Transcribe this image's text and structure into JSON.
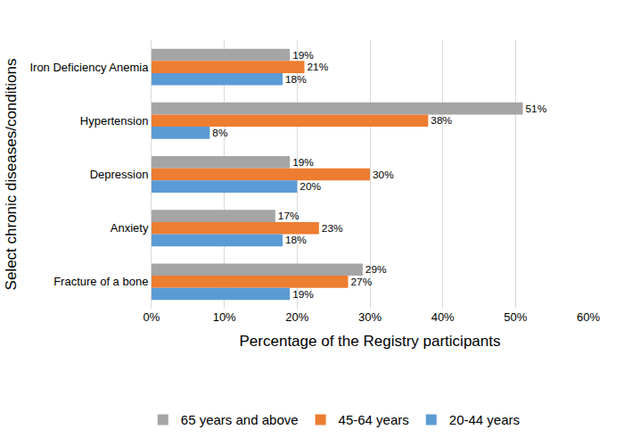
{
  "chart_data": {
    "type": "bar",
    "orientation": "horizontal",
    "x_label": "Percentage of the Registry participants",
    "y_label": "Select chronic diseases/conditions",
    "categories": [
      "Iron Deficiency Anemia",
      "Hypertension",
      "Depression",
      "Anxiety",
      "Fracture of a bone"
    ],
    "series": [
      {
        "name": "65 years and above",
        "color": "#a5a5a5",
        "values": [
          19,
          51,
          19,
          17,
          29
        ],
        "value_labels": [
          "19%",
          "51%",
          "19%",
          "17%",
          "29%"
        ]
      },
      {
        "name": "45-64 years",
        "color": "#ed7d31",
        "values": [
          21,
          38,
          30,
          23,
          27
        ],
        "value_labels": [
          "21%",
          "38%",
          "30%",
          "23%",
          "27%"
        ]
      },
      {
        "name": "20-44 years",
        "color": "#5b9bd5",
        "values": [
          18,
          8,
          20,
          18,
          19
        ],
        "value_labels": [
          "18%",
          "8%",
          "20%",
          "18%",
          "19%"
        ]
      }
    ],
    "xlim": [
      0,
      60
    ],
    "xticks": [
      {
        "value": 0,
        "label": "0%"
      },
      {
        "value": 10,
        "label": "10%"
      },
      {
        "value": 20,
        "label": "20%"
      },
      {
        "value": 30,
        "label": "30%"
      },
      {
        "value": 40,
        "label": "40%"
      },
      {
        "value": 50,
        "label": "50%"
      },
      {
        "value": 60,
        "label": "60%"
      }
    ],
    "grid": true,
    "data_labels": true,
    "legend": "bottom"
  }
}
